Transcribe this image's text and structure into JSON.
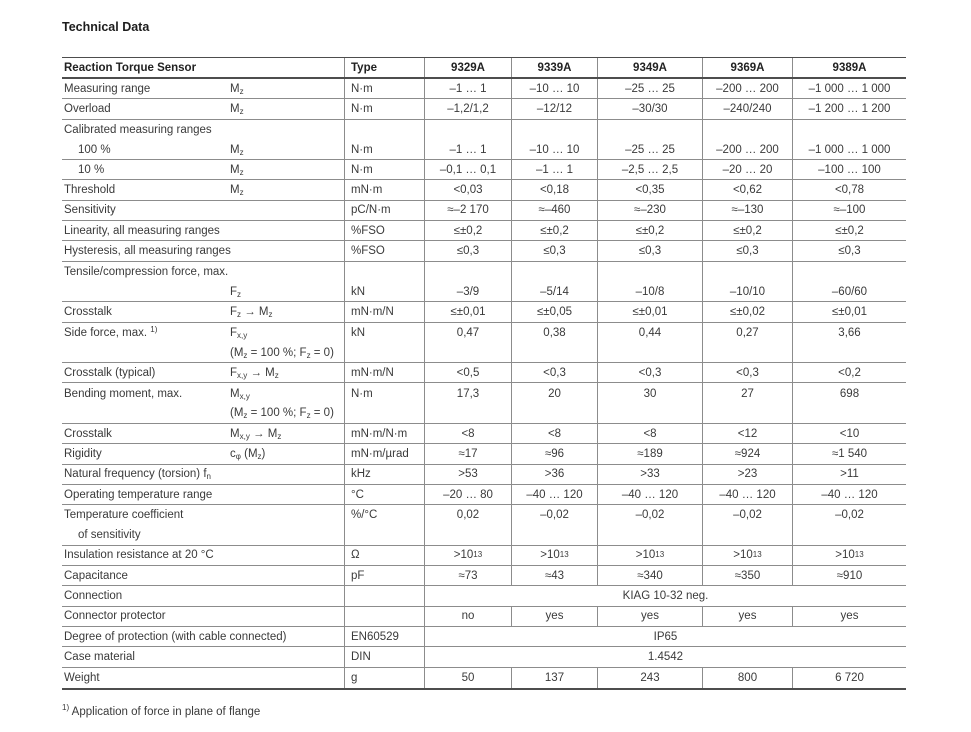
{
  "page": {
    "title": "Technical Data",
    "footnote": "^{1)} Application of force in plane of flange"
  },
  "table": {
    "header": {
      "param": "Reaction Torque Sensor",
      "type": "Type",
      "models": [
        "9329A",
        "9339A",
        "9349A",
        "9369A",
        "9389A"
      ]
    },
    "rows": [
      {
        "label": "Measuring range",
        "symbol": "M_{z}",
        "unit": "N·m",
        "values": [
          "–1 … 1",
          "–10 … 10",
          "–25 … 25",
          "–200 … 200",
          "–1 000 … 1 000"
        ]
      },
      {
        "label": "Overload",
        "symbol": "M_{z}",
        "unit": "N·m",
        "values": [
          "–1,2/1,2",
          "–12/12",
          "–30/30",
          "–240/240",
          "–1 200 … 1 200"
        ]
      },
      {
        "label": "Calibrated measuring ranges",
        "symbol": "",
        "unit": "",
        "values": [
          "",
          "",
          "",
          "",
          ""
        ],
        "noline": true
      },
      {
        "label": "100 %",
        "indent": true,
        "symbol": "M_{z}",
        "unit": "N·m",
        "values": [
          "–1 … 1",
          "–10 … 10",
          "–25 … 25",
          "–200 … 200",
          "–1 000 … 1 000"
        ]
      },
      {
        "label": "10 %",
        "indent": true,
        "symbol": "M_{z}",
        "unit": "N·m",
        "values": [
          "–0,1 … 0,1",
          "–1 … 1",
          "–2,5 … 2,5",
          "–20 … 20",
          "–100 … 100"
        ]
      },
      {
        "label": "Threshold",
        "symbol": "M_{z}",
        "unit": "mN·m",
        "values": [
          "<0,03",
          "<0,18",
          "<0,35",
          "<0,62",
          "<0,78"
        ]
      },
      {
        "label": "Sensitivity",
        "symbol": "",
        "unit": "pC/N·m",
        "values": [
          "≈–2 170",
          "≈–460",
          "≈–230",
          "≈–130",
          "≈–100"
        ]
      },
      {
        "label": "Linearity, all measuring ranges",
        "symbol": "",
        "unit": "%FSO",
        "values": [
          "≤±0,2",
          "≤±0,2",
          "≤±0,2",
          "≤±0,2",
          "≤±0,2"
        ]
      },
      {
        "label": "Hysteresis, all measuring ranges",
        "symbol": "",
        "unit": "%FSO",
        "values": [
          "≤0,3",
          "≤0,3",
          "≤0,3",
          "≤0,3",
          "≤0,3"
        ]
      },
      {
        "label": "Tensile/compression force, max.",
        "symbol": "",
        "unit": "",
        "values": [
          "",
          "",
          "",
          "",
          ""
        ],
        "noline": true
      },
      {
        "label": "",
        "symbol": "F_{z}",
        "unit": "kN",
        "values": [
          "–3/9",
          "–5/14",
          "–10/8",
          "–10/10",
          "–60/60"
        ]
      },
      {
        "label": "Crosstalk",
        "symbol": "F_{z} → M_{z}",
        "unit": "mN·m/N",
        "values": [
          "≤±0,01",
          "≤±0,05",
          "≤±0,01",
          "≤±0,02",
          "≤±0,01"
        ]
      },
      {
        "label": "Side force, max. ^{1)}",
        "symbol": "F_{x,y}",
        "unit": "kN",
        "values": [
          "0,47",
          "0,38",
          "0,44",
          "0,27",
          "3,66"
        ],
        "noline": true
      },
      {
        "label": "",
        "symbol": "(M_{z} = 100 %; F_{z} = 0)",
        "unit": "",
        "values": [
          "",
          "",
          "",
          "",
          ""
        ]
      },
      {
        "label": "Crosstalk (typical)",
        "symbol": "F_{x,y} → M_{z}",
        "unit": "mN·m/N",
        "values": [
          "<0,5",
          "<0,3",
          "<0,3",
          "<0,3",
          "<0,2"
        ]
      },
      {
        "label": "Bending moment, max.",
        "symbol": "M_{x,y}",
        "unit": "N·m",
        "values": [
          "17,3",
          "20",
          "30",
          "27",
          "698"
        ],
        "noline": true
      },
      {
        "label": "",
        "symbol": "(M_{z} = 100 %; F_{z} = 0)",
        "unit": "",
        "values": [
          "",
          "",
          "",
          "",
          ""
        ]
      },
      {
        "label": "Crosstalk",
        "symbol": "M_{x,y} → M_{z}",
        "unit": "mN·m/N·m",
        "values": [
          "<8",
          "<8",
          "<8",
          "<12",
          "<10"
        ]
      },
      {
        "label": "Rigidity",
        "symbol": "c_{φ} (M_{z})",
        "unit": "mN·m/µrad",
        "values": [
          "≈17",
          "≈96",
          "≈189",
          "≈924",
          "≈1 540"
        ]
      },
      {
        "label": "Natural frequency (torsion) f_{n}",
        "symbol": "",
        "unit": "kHz",
        "values": [
          ">53",
          ">36",
          ">33",
          ">23",
          ">11"
        ]
      },
      {
        "label": "Operating temperature range",
        "symbol": "",
        "unit": "°C",
        "values": [
          "–20 … 80",
          "–40 … 120",
          "–40 … 120",
          "–40 … 120",
          "–40 … 120"
        ]
      },
      {
        "label": "Temperature coefficient",
        "symbol": "",
        "unit": "%/°C",
        "values": [
          "0,02",
          "–0,02",
          "–0,02",
          "–0,02",
          "–0,02"
        ],
        "noline": true
      },
      {
        "label": "of sensitivity",
        "indent": true,
        "symbol": "",
        "unit": "",
        "values": [
          "",
          "",
          "",
          "",
          ""
        ]
      },
      {
        "label": "Insulation resistance at 20 °C",
        "symbol": "",
        "unit": "Ω",
        "values": [
          ">10^{13}",
          ">10^{13}",
          ">10^{13}",
          ">10^{13}",
          ">10^{13}"
        ]
      },
      {
        "label": "Capacitance",
        "symbol": "",
        "unit": "pF",
        "values": [
          "≈73",
          "≈43",
          "≈340",
          "≈350",
          "≈910"
        ]
      },
      {
        "label": "Connection",
        "symbol": "",
        "unit": "",
        "span": "KIAG 10-32 neg."
      },
      {
        "label": "Connector protector",
        "symbol": "",
        "unit": "",
        "values": [
          "no",
          "yes",
          "yes",
          "yes",
          "yes"
        ]
      },
      {
        "label": "Degree of protection (with cable connected)",
        "symbol": "",
        "unit": "EN60529",
        "span": "IP65"
      },
      {
        "label": "Case material",
        "symbol": "",
        "unit": "DIN",
        "span": "1.4542"
      },
      {
        "label": "Weight",
        "symbol": "",
        "unit": "g",
        "values": [
          "50",
          "137",
          "243",
          "800",
          "6 720"
        ],
        "noline": true
      }
    ]
  }
}
